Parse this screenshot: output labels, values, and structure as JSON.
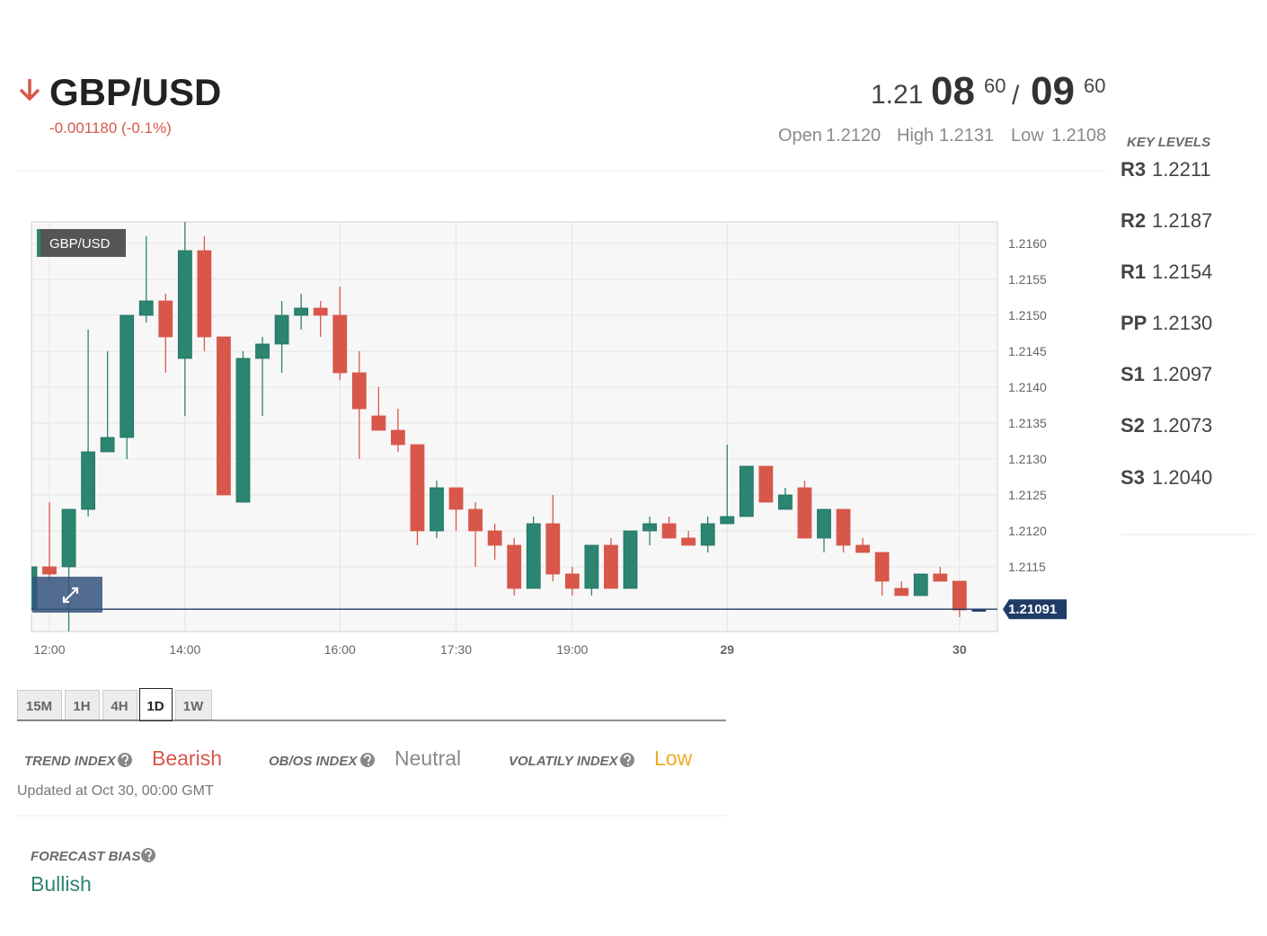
{
  "header": {
    "symbol": "GBP/USD",
    "change": "-0.001180 (-0.1%)",
    "price": {
      "big": "1.21",
      "bid_main": "08",
      "bid_pip": "60",
      "sep": "/",
      "ask_main": "09",
      "ask_pip": "60"
    },
    "stats": [
      {
        "label": "Open",
        "value": "1.2120"
      },
      {
        "label": "High",
        "value": "1.2131"
      },
      {
        "label": "Low",
        "value": "1.2108"
      }
    ]
  },
  "key_levels": {
    "title": "KEY LEVELS",
    "levels": [
      {
        "name": "R3",
        "value": "1.2211"
      },
      {
        "name": "R2",
        "value": "1.2187"
      },
      {
        "name": "R1",
        "value": "1.2154"
      },
      {
        "name": "PP",
        "value": "1.2130"
      },
      {
        "name": "S1",
        "value": "1.2097"
      },
      {
        "name": "S2",
        "value": "1.2073"
      },
      {
        "name": "S3",
        "value": "1.2040"
      }
    ]
  },
  "chart_data": {
    "type": "candlestick",
    "label": "GBP/USD",
    "up_color": "#2b8570",
    "down_color": "#d8574a",
    "categories": [
      null,
      "12:00",
      null,
      null,
      null,
      null,
      null,
      null,
      "14:00",
      null,
      null,
      null,
      null,
      null,
      null,
      null,
      "16:00",
      null,
      null,
      null,
      null,
      null,
      "17:30",
      null,
      null,
      null,
      null,
      null,
      "19:00",
      null,
      null,
      null,
      null,
      null,
      null,
      null,
      "29",
      null,
      null,
      null,
      null,
      null,
      null,
      null,
      null,
      null,
      null,
      null,
      "30",
      null
    ],
    "open": [
      1.2109,
      1.2115,
      1.2115,
      1.2123,
      1.2131,
      1.2133,
      1.215,
      1.2152,
      1.2144,
      1.2159,
      1.2147,
      1.2124,
      1.2144,
      1.2146,
      1.215,
      1.2151,
      1.215,
      1.2142,
      1.2136,
      1.2134,
      1.2132,
      1.212,
      1.2126,
      1.2123,
      1.212,
      1.2118,
      1.2112,
      1.2121,
      1.2114,
      1.2112,
      1.2118,
      1.2112,
      1.212,
      1.2121,
      1.2119,
      1.2118,
      1.2121,
      1.2122,
      1.2129,
      1.2123,
      1.2126,
      1.2119,
      1.2123,
      1.2118,
      1.2117,
      1.2112,
      1.2111,
      1.2114,
      1.2113,
      1.2109
    ],
    "high": [
      1.2116,
      1.2124,
      1.2123,
      1.2148,
      1.2145,
      1.215,
      1.2161,
      1.2153,
      1.2163,
      1.2161,
      1.2147,
      1.2145,
      1.2147,
      1.2152,
      1.2153,
      1.2152,
      1.2154,
      1.2145,
      1.214,
      1.2137,
      1.2132,
      1.2127,
      1.2126,
      1.2124,
      1.2121,
      1.2119,
      1.2122,
      1.2125,
      1.2115,
      1.2118,
      1.2119,
      1.212,
      1.2122,
      1.2122,
      1.212,
      1.2122,
      1.2132,
      1.2129,
      1.2129,
      1.2126,
      1.2127,
      1.2123,
      1.2123,
      1.2119,
      1.2117,
      1.2113,
      1.2114,
      1.2115,
      1.2113,
      1.2109
    ],
    "low": [
      1.2106,
      1.2113,
      1.2106,
      1.2122,
      1.2131,
      1.213,
      1.2149,
      1.2142,
      1.2136,
      1.2145,
      1.2125,
      1.2124,
      1.2136,
      1.2142,
      1.2148,
      1.2147,
      1.2141,
      1.213,
      1.2134,
      1.2131,
      1.2118,
      1.2119,
      1.212,
      1.2115,
      1.2116,
      1.2111,
      1.2112,
      1.2113,
      1.2111,
      1.2111,
      1.2112,
      1.2112,
      1.2118,
      1.2119,
      1.2118,
      1.2117,
      1.2121,
      1.2122,
      1.2124,
      1.2123,
      1.2119,
      1.2117,
      1.2117,
      1.2117,
      1.2111,
      1.2111,
      1.2111,
      1.2113,
      1.2108,
      1.2109
    ],
    "close": [
      1.2115,
      1.2114,
      1.2123,
      1.2131,
      1.2133,
      1.215,
      1.2152,
      1.2147,
      1.2159,
      1.2147,
      1.2125,
      1.2144,
      1.2146,
      1.215,
      1.2151,
      1.215,
      1.2142,
      1.2137,
      1.2134,
      1.2132,
      1.212,
      1.2126,
      1.2123,
      1.212,
      1.2118,
      1.2112,
      1.2121,
      1.2114,
      1.2112,
      1.2118,
      1.2112,
      1.212,
      1.2121,
      1.2119,
      1.2118,
      1.2121,
      1.2122,
      1.2129,
      1.2124,
      1.2125,
      1.2119,
      1.2123,
      1.2118,
      1.2117,
      1.2113,
      1.2111,
      1.2114,
      1.2113,
      1.2109,
      1.2109
    ],
    "last_price": 1.21091,
    "ylim": [
      1.2106,
      1.2163
    ],
    "yticks": [
      1.2115,
      {
        "value": 1.212,
        "label": "1.2120"
      },
      1.2125,
      {
        "value": 1.213,
        "label": "1.2130"
      },
      1.2135,
      {
        "value": 1.214,
        "label": "1.2140"
      },
      1.2145,
      {
        "value": 1.215,
        "label": "1.2150"
      },
      1.2155,
      {
        "value": 1.216,
        "label": "1.2160"
      }
    ],
    "grid": true
  },
  "timeframes": {
    "options": [
      "15M",
      "1H",
      "4H",
      "1D",
      "1W"
    ],
    "active": 3
  },
  "indices": [
    {
      "label": "TREND INDEX",
      "value": "Bearish"
    },
    {
      "label": "OB/OS INDEX",
      "value": "Neutral"
    },
    {
      "label": "VOLATILY INDEX",
      "value": "Low"
    }
  ],
  "updated": "Updated at Oct 30, 00:00 GMT",
  "forecast": {
    "label": "FORECAST BIAS",
    "value": "Bullish"
  }
}
